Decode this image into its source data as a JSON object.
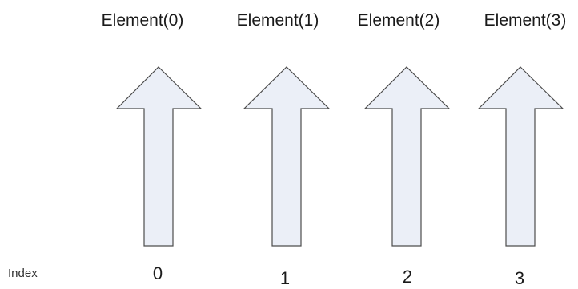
{
  "index_label": "Index",
  "items": [
    {
      "element": "Element(0)",
      "index": "0"
    },
    {
      "element": "Element(1)",
      "index": "1"
    },
    {
      "element": "Element(2)",
      "index": "2"
    },
    {
      "element": "Element(3)",
      "index": "3"
    }
  ],
  "colors": {
    "arrow_fill": "#ebeff7",
    "arrow_stroke": "#4d4d4d"
  }
}
